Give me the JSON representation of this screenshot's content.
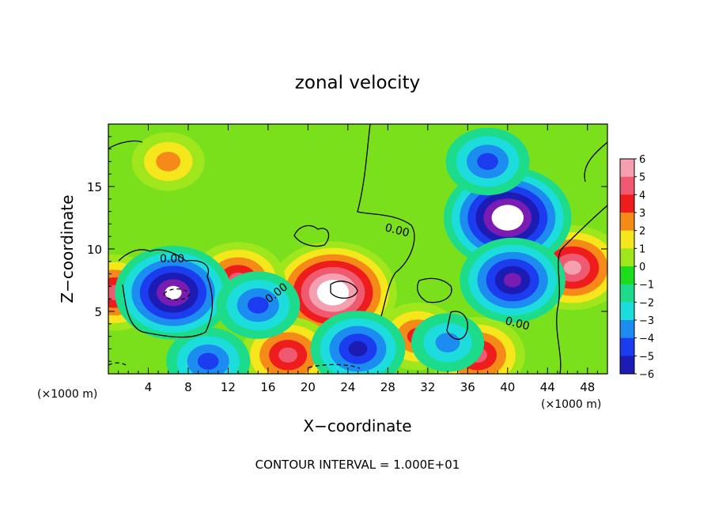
{
  "chart_data": {
    "type": "heatmap",
    "title": "zonal velocity",
    "xlabel": "X−coordinate",
    "ylabel": "Z−coordinate",
    "x_units": "(×1000 m)",
    "y_units": "(×1000 m)",
    "xlim": [
      0,
      50
    ],
    "ylim": [
      0,
      20
    ],
    "x_ticks": [
      4,
      8,
      12,
      16,
      20,
      24,
      28,
      32,
      36,
      40,
      44,
      48
    ],
    "x_tick_labels": [
      "4",
      "8",
      "12",
      "16",
      "20",
      "24",
      "28",
      "32",
      "36",
      "40",
      "44",
      "48"
    ],
    "y_ticks": [
      5,
      10,
      15
    ],
    "y_tick_labels": [
      "5",
      "10",
      "15"
    ],
    "colorbar": {
      "min": -6,
      "max": 6,
      "ticks": [
        6,
        5,
        4,
        3,
        2,
        1,
        0,
        -1,
        -2,
        -3,
        -4,
        -5,
        -6
      ],
      "tick_labels": [
        "6",
        "5",
        "4",
        "3",
        "2",
        "1",
        "0",
        "−1",
        "−2",
        "−3",
        "−4",
        "−5",
        "−6"
      ],
      "colors": {
        "6": "#f4a0b0",
        "5": "#f05a70",
        "4": "#ee1c1c",
        "3": "#f58a18",
        "2": "#f6e61c",
        "1": "#a0e61c",
        "0": "#1cdc1c",
        "-1": "#1cdc8c",
        "-2": "#1cdcdc",
        "-3": "#1c8cf0",
        "-4": "#1c3cf0",
        "-5": "#1c1cb4",
        "-6": "#7a1cb4"
      }
    },
    "contour_labels": [
      "0.00",
      "0.00",
      "0.00",
      "0.00"
    ],
    "contour_interval_text": "CONTOUR INTERVAL = 1.000E+01",
    "field_features": [
      {
        "kind": "max",
        "x": 22.5,
        "z": 6.5,
        "value": 8
      },
      {
        "kind": "max",
        "x": 46.5,
        "z": 8.5,
        "value": 6
      },
      {
        "kind": "max",
        "x": 6,
        "z": 17,
        "value": 3
      },
      {
        "kind": "max",
        "x": 13,
        "z": 7.5,
        "value": 4.5
      },
      {
        "kind": "max",
        "x": 0.6,
        "z": 6.5,
        "value": 4.5
      },
      {
        "kind": "max",
        "x": 18,
        "z": 1.5,
        "value": 5
      },
      {
        "kind": "max",
        "x": 37,
        "z": 1.5,
        "value": 5
      },
      {
        "kind": "max",
        "x": 31,
        "z": 3,
        "value": 4
      },
      {
        "kind": "min",
        "x": 40,
        "z": 12.5,
        "value": -8
      },
      {
        "kind": "min",
        "x": 6.5,
        "z": 6.5,
        "value": -7
      },
      {
        "kind": "min",
        "x": 40.5,
        "z": 7.5,
        "value": -6
      },
      {
        "kind": "min",
        "x": 38,
        "z": 17,
        "value": -4
      },
      {
        "kind": "min",
        "x": 15,
        "z": 5.5,
        "value": -3.5
      },
      {
        "kind": "min",
        "x": 25,
        "z": 2,
        "value": -5
      },
      {
        "kind": "min",
        "x": 34,
        "z": 2.5,
        "value": -2.5
      },
      {
        "kind": "min",
        "x": 10,
        "z": 1,
        "value": -4
      }
    ]
  }
}
